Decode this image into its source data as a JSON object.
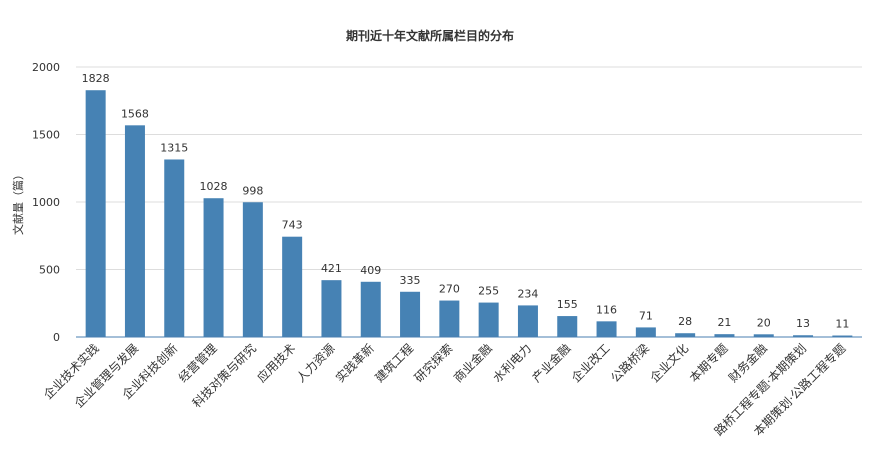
{
  "chart_data": {
    "type": "bar",
    "title": "期刊近十年文献所属栏目的分布",
    "ylabel": "文献量（篇）",
    "xlabel": "",
    "ylim": [
      0,
      2000
    ],
    "yticks": [
      0,
      500,
      1000,
      1500,
      2000
    ],
    "grid": true,
    "bar_color": "#4682b4",
    "categories": [
      "企业技术实践",
      "企业管理与发展",
      "企业科技创新",
      "经营管理",
      "科技对策与研究",
      "应用技术",
      "人力资源",
      "实践革新",
      "建筑工程",
      "研究探索",
      "商业金融",
      "水利电力",
      "产业金融",
      "企业改工",
      "公路桥梁",
      "企业文化",
      "本期专题",
      "财务金融",
      "路桥工程专题·本期策划",
      "本期策划·公路工程专题"
    ],
    "values": [
      1828,
      1568,
      1315,
      1028,
      998,
      743,
      421,
      409,
      335,
      270,
      255,
      234,
      155,
      116,
      71,
      28,
      21,
      20,
      13,
      11
    ]
  }
}
